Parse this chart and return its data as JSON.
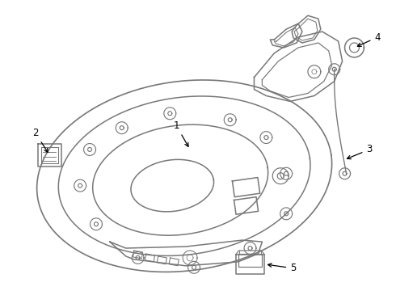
{
  "bg_color": "#ffffff",
  "line_color": "#787878",
  "label_color": "#000000",
  "fig_w": 4.9,
  "fig_h": 3.6,
  "dpi": 100
}
